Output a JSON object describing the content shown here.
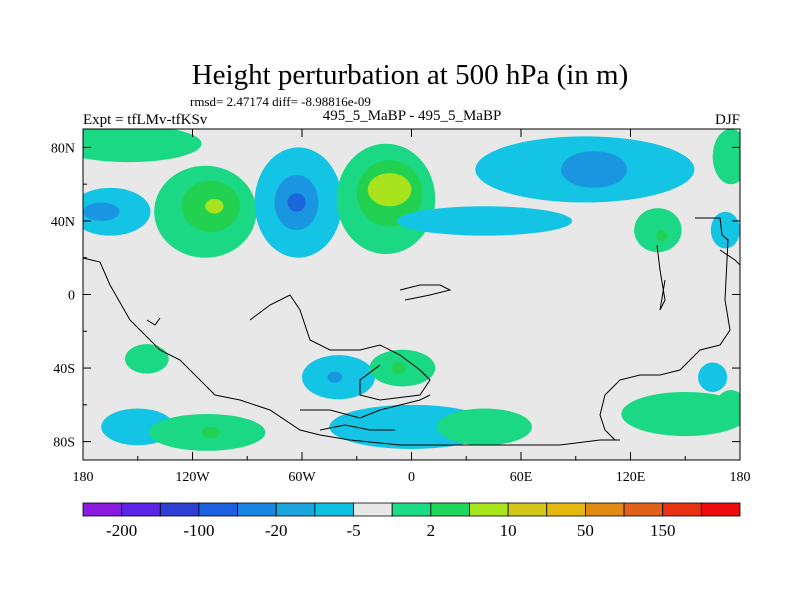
{
  "chart_data": {
    "type": "contour-map",
    "title": "Height perturbation at 500 hPa (in m)",
    "stats": "rmsd= 2.47174 diff= -8.98816e-09",
    "left_label": "Expt = tfLMv-tfKSv",
    "center_label": "495_5_MaBP - 495_5_MaBP",
    "right_label": "DJF",
    "x_ticks": [
      {
        "value": -180,
        "label": "180"
      },
      {
        "value": -120,
        "label": "120W"
      },
      {
        "value": -60,
        "label": "60W"
      },
      {
        "value": 0,
        "label": "0"
      },
      {
        "value": 60,
        "label": "60E"
      },
      {
        "value": 120,
        "label": "120E"
      },
      {
        "value": 180,
        "label": "180"
      }
    ],
    "y_ticks": [
      {
        "value": 80,
        "label": "80N"
      },
      {
        "value": 40,
        "label": "40N"
      },
      {
        "value": 0,
        "label": "0"
      },
      {
        "value": -40,
        "label": "40S"
      },
      {
        "value": -80,
        "label": "80S"
      }
    ],
    "xlim": [
      -180,
      180
    ],
    "ylim": [
      -90,
      90
    ],
    "colorbar": {
      "colors": [
        "#8a1be0",
        "#5b24e6",
        "#2e3fd6",
        "#1c5fe0",
        "#1a86e3",
        "#1aa6dc",
        "#0fc0e3",
        "#e8e8e8",
        "#1ddc86",
        "#1dd65a",
        "#a9e51d",
        "#d1c81a",
        "#e6b812",
        "#e08a12",
        "#e0621a",
        "#e83214",
        "#ee0c0c"
      ],
      "labels": [
        {
          "after_box": 1,
          "text": "-200"
        },
        {
          "after_box": 3,
          "text": "-100"
        },
        {
          "after_box": 5,
          "text": "-20"
        },
        {
          "after_box": 7,
          "text": "-5"
        },
        {
          "after_box": 9,
          "text": "2"
        },
        {
          "after_box": 11,
          "text": "10"
        },
        {
          "after_box": 13,
          "text": "50"
        },
        {
          "after_box": 15,
          "text": "150"
        }
      ]
    },
    "regions": [
      {
        "name": "pos-npac-arc",
        "lon": -155,
        "lat": 82,
        "rx": 40,
        "ry": 10,
        "tone": "pos1"
      },
      {
        "name": "neg-npac",
        "lon": -165,
        "lat": 45,
        "rx": 22,
        "ry": 13,
        "tone": "neg1"
      },
      {
        "name": "neg-npac-core",
        "lon": -170,
        "lat": 45,
        "rx": 10,
        "ry": 5,
        "tone": "neg2"
      },
      {
        "name": "pos-npac-low",
        "lon": -113,
        "lat": 45,
        "rx": 28,
        "ry": 25,
        "tone": "pos1"
      },
      {
        "name": "pos-npac-mid",
        "lon": -110,
        "lat": 48,
        "rx": 16,
        "ry": 14,
        "tone": "pos2"
      },
      {
        "name": "pos-npac-max",
        "lon": -108,
        "lat": 48,
        "rx": 5,
        "ry": 4,
        "tone": "pos3"
      },
      {
        "name": "neg-namer",
        "lon": -62,
        "lat": 50,
        "rx": 24,
        "ry": 30,
        "tone": "neg1"
      },
      {
        "name": "neg-namer-core",
        "lon": -63,
        "lat": 50,
        "rx": 12,
        "ry": 15,
        "tone": "neg2"
      },
      {
        "name": "neg-namer-max",
        "lon": -63,
        "lat": 50,
        "rx": 5,
        "ry": 5,
        "tone": "neg3"
      },
      {
        "name": "pos-natl-low",
        "lon": -14,
        "lat": 52,
        "rx": 27,
        "ry": 30,
        "tone": "pos1"
      },
      {
        "name": "pos-natl-mid",
        "lon": -12,
        "lat": 55,
        "rx": 18,
        "ry": 18,
        "tone": "pos2"
      },
      {
        "name": "pos-natl-max",
        "lon": -12,
        "lat": 57,
        "rx": 12,
        "ry": 9,
        "tone": "pos3"
      },
      {
        "name": "neg-eurasia",
        "lon": 95,
        "lat": 68,
        "rx": 60,
        "ry": 18,
        "tone": "neg1"
      },
      {
        "name": "neg-eurasia-core",
        "lon": 100,
        "lat": 68,
        "rx": 18,
        "ry": 10,
        "tone": "neg2"
      },
      {
        "name": "neg-asia-band",
        "lon": 40,
        "lat": 40,
        "rx": 48,
        "ry": 8,
        "tone": "neg1"
      },
      {
        "name": "pos-npac-west",
        "lon": 175,
        "lat": 75,
        "rx": 10,
        "ry": 15,
        "tone": "pos1"
      },
      {
        "name": "pos-japan",
        "lon": 135,
        "lat": 35,
        "rx": 13,
        "ry": 12,
        "tone": "pos1"
      },
      {
        "name": "pos-japan-core",
        "lon": 137,
        "lat": 32,
        "rx": 3,
        "ry": 3,
        "tone": "pos2"
      },
      {
        "name": "neg-wpac",
        "lon": 172,
        "lat": 35,
        "rx": 8,
        "ry": 10,
        "tone": "neg1"
      },
      {
        "name": "pos-sam",
        "lon": -145,
        "lat": -35,
        "rx": 12,
        "ry": 8,
        "tone": "pos1"
      },
      {
        "name": "neg-sam-w",
        "lon": -150,
        "lat": -72,
        "rx": 20,
        "ry": 10,
        "tone": "neg1"
      },
      {
        "name": "pos-s-pac",
        "lon": -112,
        "lat": -75,
        "rx": 32,
        "ry": 10,
        "tone": "pos1"
      },
      {
        "name": "pos-s-pac-core",
        "lon": -110,
        "lat": -75,
        "rx": 5,
        "ry": 3,
        "tone": "pos2"
      },
      {
        "name": "neg-s-atl",
        "lon": -40,
        "lat": -45,
        "rx": 20,
        "ry": 12,
        "tone": "neg1"
      },
      {
        "name": "neg-s-atl-core",
        "lon": -42,
        "lat": -45,
        "rx": 4,
        "ry": 3,
        "tone": "neg2"
      },
      {
        "name": "pos-s-ind",
        "lon": -5,
        "lat": -40,
        "rx": 18,
        "ry": 10,
        "tone": "pos1"
      },
      {
        "name": "pos-s-ind-core",
        "lon": -7,
        "lat": -40,
        "rx": 4,
        "ry": 3,
        "tone": "pos2"
      },
      {
        "name": "neg-antarctic",
        "lon": 0,
        "lat": -72,
        "rx": 45,
        "ry": 12,
        "tone": "neg1"
      },
      {
        "name": "pos-s-ind-e",
        "lon": 40,
        "lat": -72,
        "rx": 26,
        "ry": 10,
        "tone": "pos1"
      },
      {
        "name": "pos-s-pac-e",
        "lon": 150,
        "lat": -65,
        "rx": 35,
        "ry": 12,
        "tone": "pos1"
      },
      {
        "name": "neg-s-pac-e",
        "lon": 165,
        "lat": -45,
        "rx": 8,
        "ry": 8,
        "tone": "neg1"
      },
      {
        "name": "pos-s-pac-far",
        "lon": 175,
        "lat": -60,
        "rx": 8,
        "ry": 8,
        "tone": "pos1"
      }
    ],
    "tone_colors": {
      "neg1": "#14c4e4",
      "neg2": "#1a96e0",
      "neg3": "#1c66dc",
      "pos1": "#1ad884",
      "pos2": "#22d150",
      "pos3": "#a8e31e"
    }
  }
}
